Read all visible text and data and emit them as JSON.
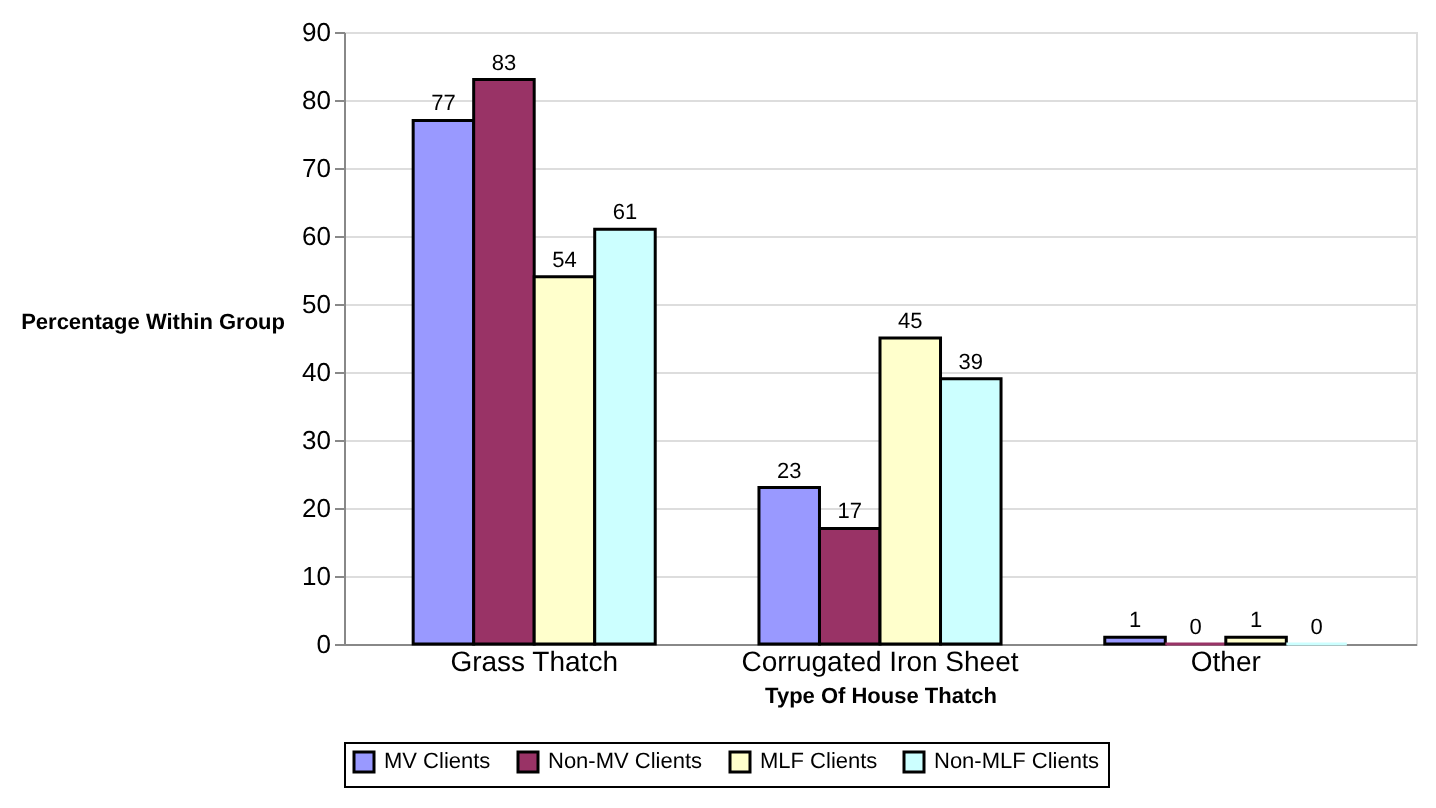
{
  "chart_data": {
    "type": "bar",
    "xlabel": "Type Of House Thatch",
    "ylabel": "Percentage Within Group",
    "categories": [
      "Grass Thatch",
      "Corrugated Iron Sheet",
      "Other"
    ],
    "series": [
      {
        "name": "MV Clients",
        "color": "#9999ff",
        "values": [
          77,
          23,
          1
        ]
      },
      {
        "name": "Non-MV Clients",
        "color": "#993366",
        "values": [
          83,
          17,
          0
        ]
      },
      {
        "name": "MLF Clients",
        "color": "#ffffcc",
        "values": [
          54,
          45,
          1
        ]
      },
      {
        "name": "Non-MLF Clients",
        "color": "#ccffff",
        "values": [
          61,
          39,
          0
        ]
      }
    ],
    "ylim": [
      0,
      90
    ],
    "yticks": [
      0,
      10,
      20,
      30,
      40,
      50,
      60,
      70,
      80,
      90
    ],
    "grid": "y",
    "legend": "bottom",
    "data_labels": true
  }
}
